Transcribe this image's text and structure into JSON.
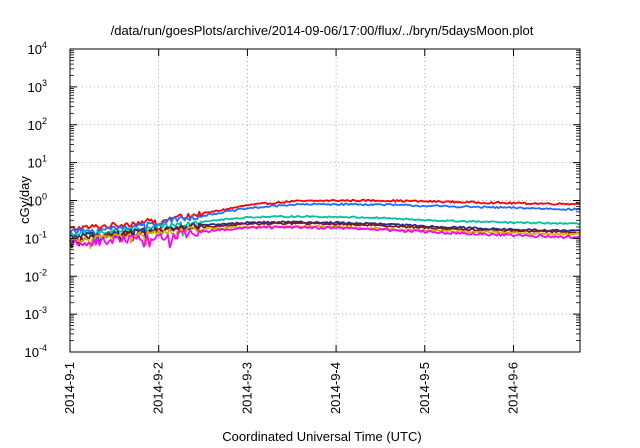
{
  "chart_data": {
    "type": "line",
    "title": "/data/run/goesPlots/archive/2014-09-06/17:00/flux/../bryn/5daysMoon.plot",
    "xlabel": "Coordinated Universal Time (UTC)",
    "ylabel": "cGy/day",
    "yscale": "log",
    "ylim": [
      0.0001,
      10000
    ],
    "xlim": [
      0,
      5.75
    ],
    "x_ticks": [
      "2014-9-1",
      "2014-9-2",
      "2014-9-3",
      "2014-9-4",
      "2014-9-5",
      "2014-9-6"
    ],
    "y_ticks": [
      {
        "base": "10",
        "exp": "-4"
      },
      {
        "base": "10",
        "exp": "-3"
      },
      {
        "base": "10",
        "exp": "-2"
      },
      {
        "base": "10",
        "exp": "-1"
      },
      {
        "base": "10",
        "exp": "0"
      },
      {
        "base": "10",
        "exp": "1"
      },
      {
        "base": "10",
        "exp": "2"
      },
      {
        "base": "10",
        "exp": "3"
      },
      {
        "base": "10",
        "exp": "4"
      }
    ],
    "grid": true,
    "legend": "none",
    "series": [
      {
        "color": "#ff0000",
        "jitter": 0.05,
        "points": [
          [
            0,
            0.18
          ],
          [
            0.5,
            0.22
          ],
          [
            1.0,
            0.3
          ],
          [
            1.5,
            0.45
          ],
          [
            2.0,
            0.75
          ],
          [
            2.5,
            0.95
          ],
          [
            3.0,
            1.0
          ],
          [
            3.5,
            1.0
          ],
          [
            4.0,
            0.95
          ],
          [
            4.5,
            0.9
          ],
          [
            5.0,
            0.85
          ],
          [
            5.5,
            0.82
          ],
          [
            5.75,
            0.82
          ]
        ]
      },
      {
        "color": "#1f6fff",
        "jitter": 0.05,
        "points": [
          [
            0,
            0.15
          ],
          [
            0.5,
            0.18
          ],
          [
            1.0,
            0.26
          ],
          [
            1.5,
            0.4
          ],
          [
            2.0,
            0.62
          ],
          [
            2.5,
            0.78
          ],
          [
            3.0,
            0.8
          ],
          [
            3.5,
            0.78
          ],
          [
            4.0,
            0.72
          ],
          [
            4.5,
            0.68
          ],
          [
            5.0,
            0.64
          ],
          [
            5.5,
            0.6
          ],
          [
            5.75,
            0.58
          ]
        ]
      },
      {
        "color": "#00c0a0",
        "jitter": 0.04,
        "points": [
          [
            0,
            0.13
          ],
          [
            0.5,
            0.15
          ],
          [
            1.0,
            0.2
          ],
          [
            1.5,
            0.28
          ],
          [
            2.0,
            0.36
          ],
          [
            2.5,
            0.38
          ],
          [
            3.0,
            0.37
          ],
          [
            3.5,
            0.35
          ],
          [
            4.0,
            0.3
          ],
          [
            4.5,
            0.28
          ],
          [
            5.0,
            0.26
          ],
          [
            5.5,
            0.25
          ],
          [
            5.75,
            0.24
          ]
        ]
      },
      {
        "color": "#2a2a8a",
        "jitter": 0.05,
        "points": [
          [
            0,
            0.11
          ],
          [
            0.5,
            0.13
          ],
          [
            1.0,
            0.17
          ],
          [
            1.5,
            0.22
          ],
          [
            2.0,
            0.26
          ],
          [
            2.5,
            0.27
          ],
          [
            3.0,
            0.26
          ],
          [
            3.5,
            0.24
          ],
          [
            4.0,
            0.21
          ],
          [
            4.5,
            0.19
          ],
          [
            5.0,
            0.17
          ],
          [
            5.5,
            0.16
          ],
          [
            5.75,
            0.16
          ]
        ]
      },
      {
        "color": "#7a1a1a",
        "jitter": 0.05,
        "points": [
          [
            0,
            0.1
          ],
          [
            0.5,
            0.12
          ],
          [
            1.0,
            0.16
          ],
          [
            1.5,
            0.2
          ],
          [
            2.0,
            0.24
          ],
          [
            2.5,
            0.25
          ],
          [
            3.0,
            0.24
          ],
          [
            3.5,
            0.22
          ],
          [
            4.0,
            0.19
          ],
          [
            4.5,
            0.17
          ],
          [
            5.0,
            0.16
          ],
          [
            5.5,
            0.15
          ],
          [
            5.75,
            0.14
          ]
        ]
      },
      {
        "color": "#d0b000",
        "jitter": 0.05,
        "points": [
          [
            0,
            0.09
          ],
          [
            0.5,
            0.11
          ],
          [
            1.0,
            0.14
          ],
          [
            1.5,
            0.18
          ],
          [
            2.0,
            0.2
          ],
          [
            2.5,
            0.21
          ],
          [
            3.0,
            0.2
          ],
          [
            3.5,
            0.18
          ],
          [
            4.0,
            0.16
          ],
          [
            4.5,
            0.15
          ],
          [
            5.0,
            0.14
          ],
          [
            5.5,
            0.13
          ],
          [
            5.75,
            0.13
          ]
        ]
      },
      {
        "color": "#ff00ff",
        "jitter": 0.07,
        "points": [
          [
            0,
            0.07
          ],
          [
            0.5,
            0.09
          ],
          [
            1.0,
            0.11
          ],
          [
            1.5,
            0.15
          ],
          [
            2.0,
            0.19
          ],
          [
            2.5,
            0.2
          ],
          [
            3.0,
            0.19
          ],
          [
            3.5,
            0.17
          ],
          [
            4.0,
            0.15
          ],
          [
            4.5,
            0.13
          ],
          [
            5.0,
            0.12
          ],
          [
            5.5,
            0.11
          ],
          [
            5.75,
            0.11
          ]
        ]
      }
    ]
  }
}
